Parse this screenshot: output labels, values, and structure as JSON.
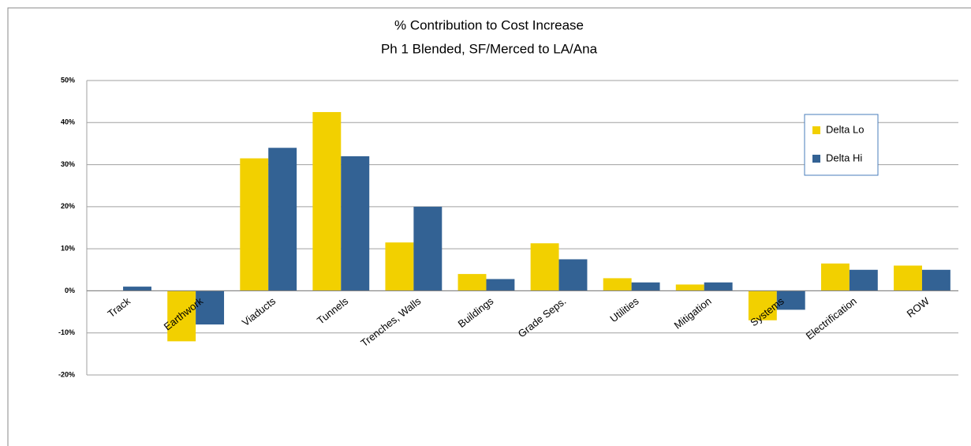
{
  "chart_data": {
    "type": "bar",
    "title": "% Contribution to Cost Increase",
    "subtitle": "Ph 1 Blended, SF/Merced to LA/Ana",
    "categories": [
      "Track",
      "Earthwork",
      "Viaducts",
      "Tunnels",
      "Trenches, Walls",
      "Buildings",
      "Grade Seps.",
      "Utilities",
      "Mitigation",
      "Systems",
      "Electrification",
      "ROW"
    ],
    "series": [
      {
        "name": "Delta Lo",
        "color": "#f2d000",
        "values": [
          0,
          -12,
          31.5,
          42.5,
          11.5,
          4,
          11.3,
          3,
          1.5,
          -7,
          6.5,
          6
        ]
      },
      {
        "name": "Delta Hi",
        "color": "#336294",
        "values": [
          1,
          -8,
          34,
          32,
          20,
          2.8,
          7.5,
          2,
          2,
          -4.5,
          5,
          5
        ]
      }
    ],
    "ylim": [
      -20,
      50
    ],
    "yticks": [
      {
        "value": -20,
        "label": "-20%"
      },
      {
        "value": -10,
        "label": "-10%"
      },
      {
        "value": 0,
        "label": "0%"
      },
      {
        "value": 10,
        "label": "10%"
      },
      {
        "value": 20,
        "label": "20%"
      },
      {
        "value": 30,
        "label": "30%"
      },
      {
        "value": 40,
        "label": "40%"
      },
      {
        "value": 50,
        "label": "50%"
      }
    ],
    "grid": true,
    "legend": "right"
  }
}
